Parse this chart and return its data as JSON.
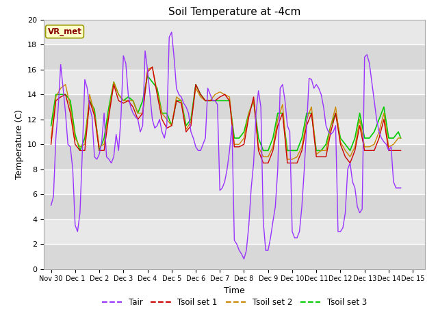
{
  "title": "Soil Temperature at -4cm",
  "xlabel": "Time",
  "ylabel": "Temperature (C)",
  "ylim": [
    0,
    20
  ],
  "xlim": [
    -0.3,
    15.5
  ],
  "background_color": "#ffffff",
  "plot_bg_color": "#e8e8e8",
  "grid_color": "#ffffff",
  "annotation_text": "VR_met",
  "annotation_bg": "#ffffcc",
  "annotation_border": "#999900",
  "annotation_text_color": "#880000",
  "xtick_labels": [
    "Nov 30",
    "Dec 1",
    "Dec 2",
    "Dec 3",
    "Dec 4",
    "Dec 5",
    "Dec 6",
    "Dec 7",
    "Dec 8",
    "Dec 9",
    "Dec 10",
    "Dec 11",
    "Dec 12",
    "Dec 13",
    "Dec 14",
    "Dec 15"
  ],
  "xtick_positions": [
    0,
    1,
    2,
    3,
    4,
    5,
    6,
    7,
    8,
    9,
    10,
    11,
    12,
    13,
    14,
    15
  ],
  "series": {
    "Tair": {
      "color": "#9933ff",
      "linewidth": 1.0,
      "x": [
        0,
        0.1,
        0.2,
        0.3,
        0.4,
        0.5,
        0.6,
        0.7,
        0.8,
        0.9,
        1.0,
        1.1,
        1.2,
        1.3,
        1.4,
        1.5,
        1.6,
        1.7,
        1.8,
        1.9,
        2.0,
        2.1,
        2.2,
        2.3,
        2.4,
        2.5,
        2.6,
        2.7,
        2.8,
        2.9,
        3.0,
        3.1,
        3.2,
        3.3,
        3.4,
        3.5,
        3.6,
        3.7,
        3.8,
        3.9,
        4.0,
        4.1,
        4.2,
        4.3,
        4.4,
        4.5,
        4.6,
        4.7,
        4.8,
        4.9,
        5.0,
        5.1,
        5.2,
        5.3,
        5.4,
        5.5,
        5.6,
        5.7,
        5.8,
        5.9,
        6.0,
        6.1,
        6.2,
        6.3,
        6.4,
        6.5,
        6.6,
        6.7,
        6.8,
        6.9,
        7.0,
        7.1,
        7.2,
        7.3,
        7.4,
        7.5,
        7.6,
        7.7,
        7.8,
        7.9,
        8.0,
        8.1,
        8.2,
        8.3,
        8.4,
        8.5,
        8.6,
        8.7,
        8.8,
        8.9,
        9.0,
        9.1,
        9.2,
        9.3,
        9.4,
        9.5,
        9.6,
        9.7,
        9.8,
        9.9,
        10.0,
        10.1,
        10.2,
        10.3,
        10.4,
        10.5,
        10.6,
        10.7,
        10.8,
        10.9,
        11.0,
        11.1,
        11.2,
        11.3,
        11.4,
        11.5,
        11.6,
        11.7,
        11.8,
        11.9,
        12.0,
        12.1,
        12.2,
        12.3,
        12.4,
        12.5,
        12.6,
        12.7,
        12.8,
        12.9,
        13.0,
        13.1,
        13.2,
        13.3,
        13.4,
        13.5,
        13.6,
        13.7,
        13.8,
        13.9,
        14.0,
        14.1,
        14.2,
        14.3,
        14.4,
        14.5
      ],
      "y": [
        5.1,
        5.8,
        10.5,
        13.0,
        16.4,
        14.5,
        12.5,
        10.0,
        9.8,
        8.0,
        3.5,
        3.0,
        4.5,
        9.5,
        15.2,
        14.5,
        13.0,
        12.2,
        9.0,
        8.8,
        9.2,
        10.2,
        12.5,
        9.0,
        8.8,
        8.5,
        9.0,
        10.8,
        9.5,
        12.2,
        17.1,
        16.5,
        14.0,
        13.0,
        12.5,
        12.2,
        12.0,
        11.0,
        11.5,
        17.5,
        16.0,
        14.0,
        12.0,
        11.3,
        11.5,
        12.0,
        11.0,
        10.5,
        11.5,
        18.6,
        19.0,
        17.0,
        14.5,
        14.0,
        13.8,
        13.3,
        13.0,
        12.5,
        11.0,
        10.5,
        9.8,
        9.5,
        9.5,
        10.0,
        10.5,
        14.5,
        14.0,
        13.5,
        13.5,
        13.2,
        6.3,
        6.5,
        7.0,
        8.0,
        9.5,
        11.5,
        2.3,
        2.0,
        1.5,
        1.2,
        0.8,
        1.5,
        3.5,
        6.5,
        8.5,
        12.5,
        14.3,
        13.0,
        3.8,
        1.5,
        1.5,
        2.5,
        3.8,
        5.0,
        8.0,
        14.5,
        14.8,
        13.5,
        11.5,
        11.0,
        3.0,
        2.5,
        2.5,
        3.0,
        5.0,
        8.0,
        11.5,
        15.3,
        15.2,
        14.5,
        14.8,
        14.5,
        14.0,
        13.0,
        11.5,
        11.0,
        10.8,
        11.0,
        11.5,
        3.0,
        3.0,
        3.3,
        4.5,
        8.0,
        8.5,
        7.0,
        6.5,
        5.0,
        4.5,
        4.8,
        17.0,
        17.2,
        16.5,
        15.0,
        13.5,
        12.0,
        11.0,
        10.5,
        10.2,
        10.0,
        9.5,
        9.8,
        7.0,
        6.5,
        6.5,
        6.5
      ]
    },
    "Tsoil1": {
      "color": "#cc0000",
      "linewidth": 1.0,
      "x": [
        0,
        0.2,
        0.4,
        0.6,
        0.8,
        1.0,
        1.2,
        1.4,
        1.6,
        1.8,
        2.0,
        2.2,
        2.4,
        2.6,
        2.8,
        3.0,
        3.2,
        3.4,
        3.6,
        3.8,
        4.0,
        4.2,
        4.4,
        4.6,
        4.8,
        5.0,
        5.2,
        5.4,
        5.6,
        5.8,
        6.0,
        6.2,
        6.4,
        6.6,
        6.8,
        7.0,
        7.2,
        7.4,
        7.6,
        7.8,
        8.0,
        8.2,
        8.4,
        8.6,
        8.8,
        9.0,
        9.2,
        9.4,
        9.6,
        9.8,
        10.0,
        10.2,
        10.4,
        10.6,
        10.8,
        11.0,
        11.2,
        11.4,
        11.6,
        11.8,
        12.0,
        12.2,
        12.4,
        12.6,
        12.8,
        13.0,
        13.2,
        13.4,
        13.6,
        13.8,
        14.0,
        14.2,
        14.4,
        14.5
      ],
      "y": [
        10.0,
        13.5,
        13.8,
        14.0,
        12.5,
        10.0,
        9.5,
        9.5,
        13.5,
        12.3,
        9.5,
        9.5,
        12.3,
        14.8,
        13.5,
        13.3,
        13.5,
        13.0,
        12.0,
        12.5,
        15.8,
        16.2,
        14.0,
        12.0,
        11.3,
        11.5,
        13.5,
        13.3,
        11.0,
        11.5,
        14.8,
        14.0,
        13.5,
        13.5,
        13.5,
        13.8,
        14.0,
        13.5,
        9.8,
        9.8,
        10.0,
        12.2,
        13.8,
        9.5,
        8.5,
        8.5,
        9.5,
        11.5,
        12.5,
        8.5,
        8.5,
        8.5,
        9.5,
        11.5,
        12.5,
        9.0,
        9.0,
        9.0,
        11.0,
        12.5,
        10.0,
        9.0,
        8.5,
        9.5,
        11.5,
        9.5,
        9.5,
        9.5,
        10.5,
        12.0,
        9.5,
        9.5,
        9.5,
        9.5
      ]
    },
    "Tsoil2": {
      "color": "#cc8800",
      "linewidth": 1.0,
      "x": [
        0,
        0.2,
        0.4,
        0.6,
        0.8,
        1.0,
        1.2,
        1.4,
        1.6,
        1.8,
        2.0,
        2.2,
        2.4,
        2.6,
        2.8,
        3.0,
        3.2,
        3.4,
        3.6,
        3.8,
        4.0,
        4.2,
        4.4,
        4.6,
        4.8,
        5.0,
        5.2,
        5.4,
        5.6,
        5.8,
        6.0,
        6.2,
        6.4,
        6.6,
        6.8,
        7.0,
        7.2,
        7.4,
        7.6,
        7.8,
        8.0,
        8.2,
        8.4,
        8.6,
        8.8,
        9.0,
        9.2,
        9.4,
        9.6,
        9.8,
        10.0,
        10.2,
        10.4,
        10.6,
        10.8,
        11.0,
        11.2,
        11.4,
        11.6,
        11.8,
        12.0,
        12.2,
        12.4,
        12.6,
        12.8,
        13.0,
        13.2,
        13.4,
        13.6,
        13.8,
        14.0,
        14.2,
        14.4,
        14.5
      ],
      "y": [
        10.5,
        13.8,
        14.5,
        14.8,
        13.0,
        10.5,
        9.8,
        10.0,
        14.0,
        12.5,
        9.8,
        10.0,
        12.6,
        15.0,
        14.0,
        13.5,
        13.5,
        13.5,
        12.5,
        12.5,
        16.0,
        16.2,
        14.2,
        12.5,
        12.0,
        11.5,
        13.8,
        13.5,
        11.2,
        11.8,
        14.5,
        13.8,
        13.5,
        13.5,
        14.0,
        14.2,
        14.0,
        13.8,
        10.0,
        10.0,
        10.5,
        12.5,
        13.5,
        9.8,
        9.0,
        9.0,
        9.8,
        12.0,
        13.2,
        8.8,
        8.8,
        9.0,
        9.8,
        12.0,
        13.0,
        9.2,
        9.5,
        9.5,
        11.5,
        13.0,
        10.2,
        9.5,
        9.0,
        9.8,
        12.0,
        9.8,
        9.8,
        10.0,
        11.0,
        12.5,
        9.8,
        10.0,
        10.5,
        10.5
      ]
    },
    "Tsoil3": {
      "color": "#00cc00",
      "linewidth": 1.2,
      "x": [
        0,
        0.2,
        0.4,
        0.6,
        0.8,
        1.0,
        1.2,
        1.4,
        1.6,
        1.8,
        2.0,
        2.2,
        2.4,
        2.6,
        2.8,
        3.0,
        3.2,
        3.4,
        3.6,
        3.8,
        4.0,
        4.2,
        4.4,
        4.6,
        4.8,
        5.0,
        5.2,
        5.4,
        5.6,
        5.8,
        6.0,
        6.2,
        6.4,
        6.6,
        6.8,
        7.0,
        7.2,
        7.4,
        7.6,
        7.8,
        8.0,
        8.2,
        8.4,
        8.6,
        8.8,
        9.0,
        9.2,
        9.4,
        9.6,
        9.8,
        10.0,
        10.2,
        10.4,
        10.6,
        10.8,
        11.0,
        11.2,
        11.4,
        11.6,
        11.8,
        12.0,
        12.2,
        12.4,
        12.6,
        12.8,
        13.0,
        13.2,
        13.4,
        13.6,
        13.8,
        14.0,
        14.2,
        14.4,
        14.5
      ],
      "y": [
        11.5,
        14.0,
        14.0,
        14.0,
        13.5,
        10.8,
        9.5,
        10.5,
        13.5,
        12.8,
        9.5,
        10.5,
        13.0,
        15.0,
        14.0,
        13.5,
        13.8,
        13.5,
        12.5,
        13.5,
        15.5,
        15.0,
        14.5,
        12.5,
        12.5,
        11.5,
        13.5,
        13.5,
        11.5,
        12.0,
        14.8,
        14.0,
        13.5,
        13.5,
        13.5,
        13.5,
        13.5,
        13.5,
        10.5,
        10.5,
        11.0,
        12.5,
        13.5,
        10.5,
        9.5,
        9.5,
        10.5,
        12.5,
        12.5,
        9.5,
        9.5,
        9.5,
        10.5,
        12.5,
        12.5,
        9.5,
        9.5,
        10.0,
        11.5,
        12.5,
        10.5,
        10.0,
        9.5,
        10.5,
        12.5,
        10.5,
        10.5,
        11.0,
        12.0,
        13.0,
        10.5,
        10.5,
        11.0,
        10.5
      ]
    }
  },
  "legend_entries": [
    {
      "label": "Tair",
      "color": "#9933ff"
    },
    {
      "label": "Tsoil set 1",
      "color": "#cc0000"
    },
    {
      "label": "Tsoil set 2",
      "color": "#cc8800"
    },
    {
      "label": "Tsoil set 3",
      "color": "#00cc00"
    }
  ]
}
